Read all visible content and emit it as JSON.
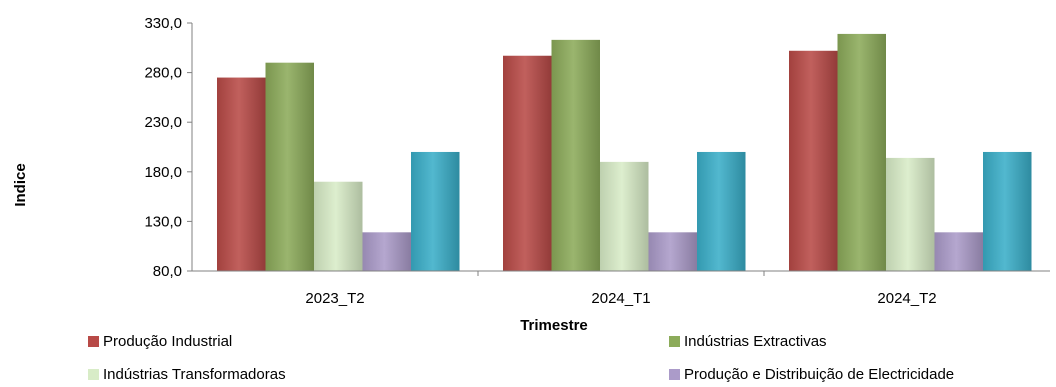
{
  "chart_data": {
    "type": "bar",
    "xlabel": "Trimestre",
    "ylabel": "Indice",
    "categories": [
      "2023_T2",
      "2024_T1",
      "2024_T2"
    ],
    "ylim": [
      80,
      330
    ],
    "yticks": [
      "80,0",
      "130,0",
      "180,0",
      "230,0",
      "280,0",
      "330,0"
    ],
    "ytick_values": [
      80,
      130,
      180,
      230,
      280,
      330
    ],
    "grid": false,
    "legend_position": "bottom",
    "series": [
      {
        "name": "Produção Industrial",
        "values": [
          275,
          297,
          302
        ],
        "color": "#b84a47"
      },
      {
        "name": "Indústrias Extractivas",
        "values": [
          290,
          313,
          319
        ],
        "color": "#8cab5a"
      },
      {
        "name": "Indústrias Transformadoras",
        "values": [
          170,
          190,
          194
        ],
        "color": "#d8ecc7"
      },
      {
        "name": "Produção e Distribuição de Electricidade",
        "values": [
          119,
          119,
          119
        ],
        "color": "#ab9bc9"
      },
      {
        "name": "",
        "values": [
          200,
          200,
          200
        ],
        "color": "#3aaec8"
      }
    ]
  }
}
